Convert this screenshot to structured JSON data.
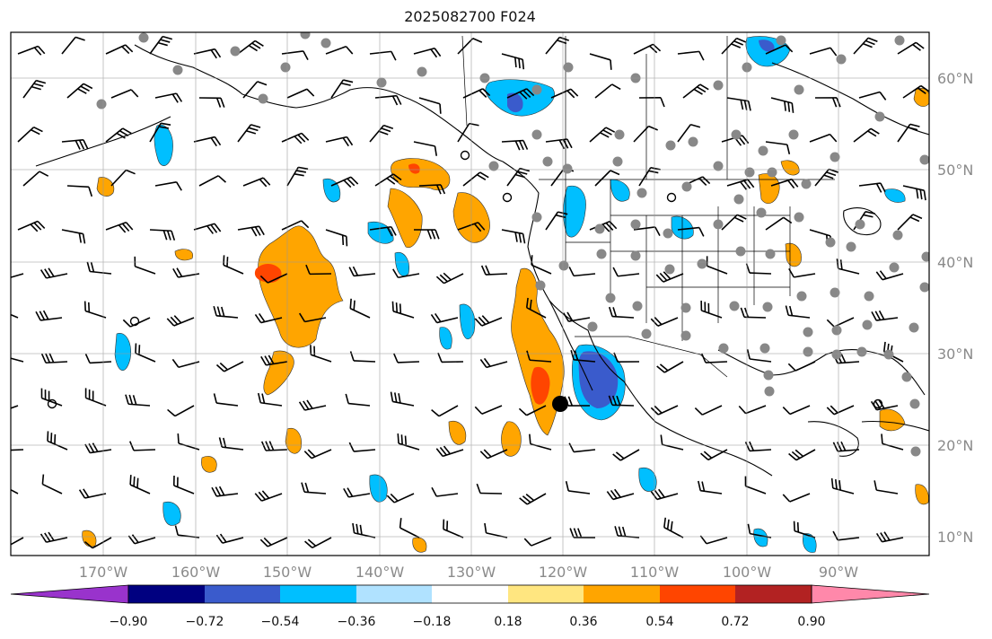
{
  "title": "2025082700 F024",
  "map": {
    "lon_range": [
      -180,
      -80
    ],
    "lat_range": [
      7,
      64
    ],
    "lat_ticks": [
      "10°N",
      "20°N",
      "30°N",
      "40°N",
      "50°N",
      "60°N"
    ],
    "lon_ticks": [
      "170°W",
      "160°W",
      "150°W",
      "140°W",
      "130°W",
      "120°W",
      "110°W",
      "100°W",
      "90°W"
    ],
    "grid": true,
    "field_colors": {
      "strong_negative": "#3a5bcc",
      "negative": "#00bfff",
      "weak_negative": "#b0e2ff",
      "weak_positive": "#ffe680",
      "positive": "#ffa500",
      "strong_positive": "#ff4500",
      "marker": "#888888"
    }
  },
  "colorbar": {
    "colors": [
      "#9933cc",
      "#000080",
      "#3a5bcc",
      "#00bfff",
      "#b0e2ff",
      "#ffffff",
      "#ffe680",
      "#ffa500",
      "#ff4500",
      "#b22222",
      "#ff88aa"
    ],
    "ticks": [
      "−0.90",
      "−0.72",
      "−0.54",
      "−0.36",
      "−0.18",
      "0.18",
      "0.36",
      "0.54",
      "0.72",
      "0.90"
    ]
  }
}
